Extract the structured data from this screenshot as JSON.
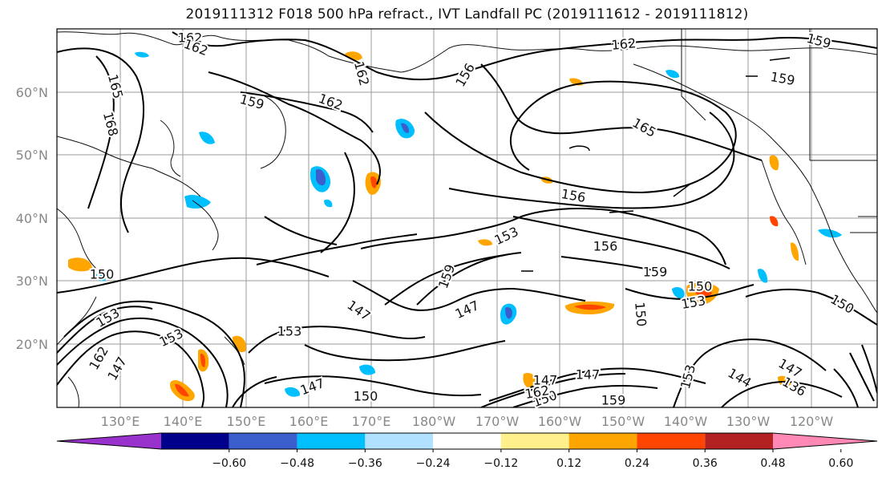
{
  "title": "2019111312 F018 500 hPa refract., IVT Landfall PC (2019111612 - 2019111812)",
  "lat_labels": [
    "60°N",
    "50°N",
    "40°N",
    "30°N",
    "20°N"
  ],
  "lon_labels": [
    "130°E",
    "140°E",
    "150°E",
    "160°E",
    "170°E",
    "180°W",
    "170°W",
    "160°W",
    "150°W",
    "140°W",
    "130°W",
    "120°W"
  ],
  "contour_labels": [
    "162",
    "162",
    "165",
    "168",
    "162",
    "159",
    "162",
    "156",
    "162",
    "159",
    "159",
    "165",
    "156",
    "153",
    "156",
    "159",
    "150",
    "150",
    "153",
    "147",
    "159",
    "147",
    "153",
    "150",
    "153",
    "147",
    "150",
    "147",
    "144",
    "147",
    "136",
    "153",
    "162",
    "150",
    "147",
    "150",
    "153",
    "147",
    "159",
    "162"
  ],
  "colorbar": {
    "colors": [
      "#9932cc",
      "#00008b",
      "#3a5fcd",
      "#00bfff",
      "#b0e2ff",
      "#ffffff",
      "#fff08c",
      "#ffa500",
      "#ff4500",
      "#b22222",
      "#ff89b4"
    ],
    "tick_labels": [
      "−0.60",
      "−0.48",
      "−0.36",
      "−0.24",
      "−0.12",
      "0.12",
      "0.24",
      "0.36",
      "0.48",
      "0.60"
    ]
  }
}
